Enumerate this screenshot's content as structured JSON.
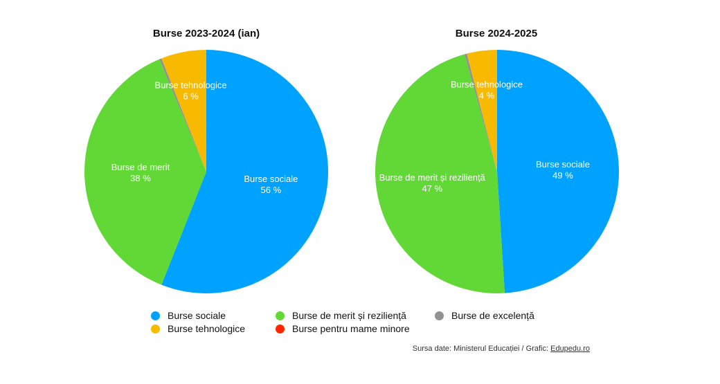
{
  "chart_data": [
    {
      "type": "pie",
      "title": "Burse 2023-2024 (ian)",
      "slices": [
        {
          "name": "Burse sociale",
          "label_line1": "Burse sociale",
          "label_line2": "56 %",
          "value": 56,
          "color": "#00A2FF"
        },
        {
          "name": "Burse de merit și reziliență",
          "label_line1": "Burse de merit",
          "label_line2": "38 %",
          "value": 37.7,
          "color": "#61D836"
        },
        {
          "name": "Burse de excelență",
          "label_line1": "",
          "label_line2": "",
          "value": 0.3,
          "color": "#929292"
        },
        {
          "name": "Burse tehnologice",
          "label_line1": "Burse tehnologice",
          "label_line2": "6 %",
          "value": 6,
          "color": "#F8BA00"
        }
      ]
    },
    {
      "type": "pie",
      "title": "Burse 2024-2025",
      "slices": [
        {
          "name": "Burse sociale",
          "label_line1": "Burse sociale",
          "label_line2": "49 %",
          "value": 49,
          "color": "#00A2FF"
        },
        {
          "name": "Burse de merit și reziliență",
          "label_line1": "Burse de merit și reziliență",
          "label_line2": "47 %",
          "value": 46.7,
          "color": "#61D836"
        },
        {
          "name": "Burse de excelență",
          "label_line1": "",
          "label_line2": "",
          "value": 0.3,
          "color": "#929292"
        },
        {
          "name": "Burse tehnologice",
          "label_line1": "Burse tehnologice",
          "label_line2": "4 %",
          "value": 4,
          "color": "#F8BA00"
        }
      ]
    }
  ],
  "legend": [
    {
      "label": "Burse sociale",
      "color": "#00A2FF"
    },
    {
      "label": "Burse de merit și reziliență",
      "color": "#61D836"
    },
    {
      "label": "Burse de excelență",
      "color": "#929292"
    },
    {
      "label": "Burse tehnologice",
      "color": "#F8BA00"
    },
    {
      "label": "Burse pentru mame minore",
      "color": "#FF2600"
    }
  ],
  "source": {
    "prefix": "Sursa date: Ministerul Educației / Grafic: ",
    "link": "Edupedu.ro"
  }
}
